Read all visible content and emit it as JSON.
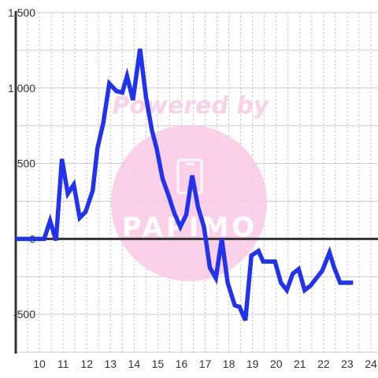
{
  "watermark": {
    "line1": "Powered by",
    "line2": "PAPIMO",
    "color": "#f9c9e4"
  },
  "chart_data": {
    "type": "line",
    "title": "",
    "xlabel": "",
    "ylabel": "",
    "xlim": [
      9.0,
      24.3
    ],
    "ylim": [
      -760,
      1500
    ],
    "grid": true,
    "legend": "none",
    "line_color": "#2233ee",
    "y_ticks": [
      1500,
      1000,
      500,
      0,
      -500
    ],
    "y_tick_labels": [
      "1,500",
      "1,000",
      "500",
      "0",
      "-500"
    ],
    "x_ticks": [
      10,
      11,
      12,
      13,
      14,
      15,
      16,
      17,
      18,
      19,
      20,
      21,
      22,
      23,
      24
    ],
    "x_tick_labels": [
      "10",
      "11",
      "12",
      "13",
      "14",
      "15",
      "16",
      "17",
      "18",
      "19",
      "20",
      "21",
      "22",
      "23",
      "24"
    ],
    "series": [
      {
        "name": "",
        "x": [
          9.0,
          9.5,
          10.0,
          10.2,
          10.45,
          10.7,
          10.95,
          11.2,
          11.45,
          11.7,
          11.95,
          12.25,
          12.45,
          12.7,
          12.95,
          13.25,
          13.5,
          13.7,
          13.95,
          14.25,
          14.5,
          14.75,
          14.95,
          15.2,
          15.45,
          15.7,
          15.95,
          16.2,
          16.45,
          16.7,
          16.95,
          17.2,
          17.45,
          17.7,
          17.95,
          18.25,
          18.45,
          18.7,
          18.95,
          19.25,
          19.45,
          19.75,
          19.95,
          20.2,
          20.45,
          20.7,
          20.95,
          21.2,
          21.45,
          21.7,
          21.95,
          22.25,
          22.45,
          22.7,
          22.95,
          23.25
        ],
        "values": [
          0,
          0,
          0,
          0,
          120,
          -10,
          530,
          300,
          360,
          140,
          180,
          320,
          600,
          770,
          1030,
          980,
          970,
          1080,
          920,
          1260,
          940,
          720,
          600,
          400,
          290,
          170,
          80,
          160,
          420,
          210,
          80,
          -190,
          -260,
          0,
          -290,
          -440,
          -450,
          -540,
          -110,
          -80,
          -150,
          -150,
          -150,
          -290,
          -340,
          -230,
          -200,
          -340,
          -310,
          -260,
          -210,
          -90,
          -190,
          -290,
          -290,
          -290
        ]
      }
    ]
  }
}
